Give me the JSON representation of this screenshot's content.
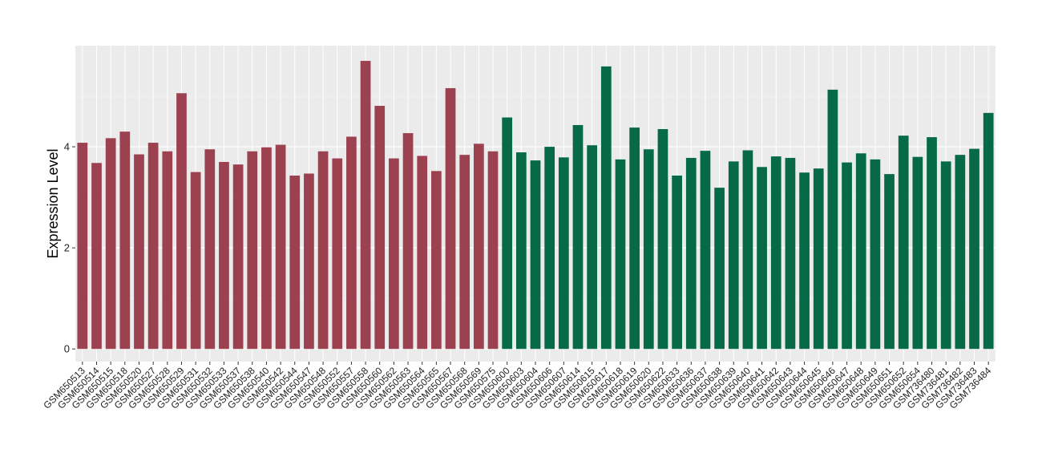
{
  "chart_data": {
    "type": "bar",
    "title": "",
    "xlabel": "",
    "ylabel": "Expression Level",
    "ylim": [
      -0.25,
      6.0
    ],
    "yticks": [
      0,
      2,
      4
    ],
    "grid": true,
    "legend": "none",
    "categories": [
      "GSM650513",
      "GSM650514",
      "GSM650515",
      "GSM650518",
      "GSM650520",
      "GSM650527",
      "GSM650528",
      "GSM650529",
      "GSM650531",
      "GSM650532",
      "GSM650533",
      "GSM650537",
      "GSM650538",
      "GSM650540",
      "GSM650542",
      "GSM650544",
      "GSM650547",
      "GSM650548",
      "GSM650552",
      "GSM650557",
      "GSM650558",
      "GSM650560",
      "GSM650562",
      "GSM650563",
      "GSM650564",
      "GSM650565",
      "GSM650567",
      "GSM650568",
      "GSM650569",
      "GSM650575",
      "GSM650600",
      "GSM650603",
      "GSM650604",
      "GSM650606",
      "GSM650607",
      "GSM650614",
      "GSM650615",
      "GSM650617",
      "GSM650618",
      "GSM650619",
      "GSM650620",
      "GSM650622",
      "GSM650633",
      "GSM650636",
      "GSM650637",
      "GSM650638",
      "GSM650639",
      "GSM650640",
      "GSM650641",
      "GSM650642",
      "GSM650643",
      "GSM650644",
      "GSM650645",
      "GSM650646",
      "GSM650647",
      "GSM650648",
      "GSM650649",
      "GSM650651",
      "GSM650652",
      "GSM650654",
      "GSM736480",
      "GSM736481",
      "GSM736482",
      "GSM736483",
      "GSM736484"
    ],
    "values": [
      4.08,
      3.68,
      4.17,
      4.3,
      3.85,
      4.08,
      3.91,
      5.06,
      3.5,
      3.95,
      3.7,
      3.65,
      3.91,
      3.99,
      4.04,
      3.43,
      3.47,
      3.91,
      3.77,
      4.2,
      5.7,
      4.81,
      3.77,
      4.27,
      3.82,
      3.52,
      5.16,
      3.84,
      4.06,
      3.91,
      4.58,
      3.89,
      3.73,
      4.0,
      3.79,
      4.43,
      4.03,
      5.59,
      3.75,
      4.38,
      3.95,
      4.35,
      3.43,
      3.78,
      3.92,
      3.19,
      3.71,
      3.93,
      3.6,
      3.81,
      3.78,
      3.49,
      3.57,
      5.13,
      3.69,
      3.87,
      3.75,
      3.46,
      4.22,
      3.8,
      4.19,
      3.71,
      3.84,
      3.96,
      4.67
    ],
    "group_colors": [
      "#9b4150",
      "#056a45"
    ],
    "group_sizes": [
      30,
      35
    ]
  }
}
